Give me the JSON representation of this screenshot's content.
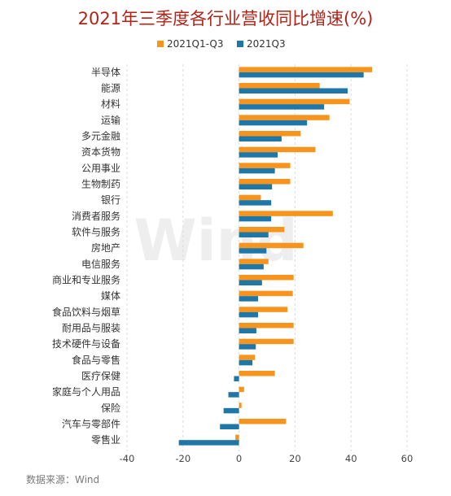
{
  "watermark": "Wind",
  "source": "数据来源：Wind",
  "colors": {
    "q1q3": "#f7941d",
    "q3": "#1f77a8",
    "title": "#b02418"
  },
  "chart_data": {
    "type": "bar",
    "orientation": "horizontal",
    "title": "2021年三季度各行业营收同比增速(%)",
    "categories": [
      "半导体",
      "能源",
      "材料",
      "运输",
      "多元金融",
      "资本货物",
      "公用事业",
      "生物制药",
      "银行",
      "消费者服务",
      "软件与服务",
      "房地产",
      "电信服务",
      "商业和专业服务",
      "媒体",
      "食品饮料与烟草",
      "耐用品与服装",
      "技术硬件与设备",
      "食品与零售",
      "医疗保健",
      "家庭与个人用品",
      "保险",
      "汽车与零部件",
      "零售业"
    ],
    "series": [
      {
        "name": "2021Q1-Q3",
        "values": [
          47.5,
          28.8,
          39.5,
          32.3,
          22.0,
          27.3,
          18.3,
          18.3,
          7.8,
          33.5,
          16.2,
          23.0,
          10.5,
          19.5,
          19.2,
          17.3,
          19.5,
          19.5,
          5.7,
          12.8,
          1.8,
          0.9,
          16.8,
          -1.3
        ]
      },
      {
        "name": "2021Q3",
        "values": [
          44.5,
          38.8,
          30.4,
          24.3,
          15.2,
          13.8,
          12.8,
          11.8,
          11.5,
          11.5,
          10.5,
          9.8,
          8.8,
          8.2,
          6.8,
          6.8,
          6.2,
          6.0,
          4.8,
          -1.8,
          -3.8,
          -5.5,
          -6.8,
          -21.5
        ]
      }
    ],
    "xlim": [
      -40,
      60
    ],
    "xticks": [
      -40,
      -20,
      0,
      20,
      40,
      60
    ],
    "grid": true,
    "legend_position": "top-center"
  }
}
